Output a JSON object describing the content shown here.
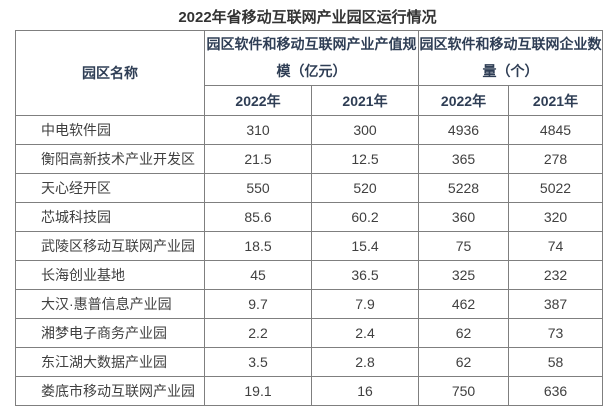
{
  "page": {
    "title": "2022年省移动互联网产业园区运行情况"
  },
  "table": {
    "name_header": "园区名称",
    "groups": [
      "园区软件和移动互联网产业产值规模（亿元）",
      "园区软件和移动互联网企业数量（个）"
    ],
    "year_columns": [
      "2022年",
      "2021年",
      "2022年",
      "2021年"
    ],
    "rows": [
      {
        "name": "中电软件园",
        "values": [
          "310",
          "300",
          "4936",
          "4845"
        ]
      },
      {
        "name": "衡阳高新技术产业开发区",
        "values": [
          "21.5",
          "12.5",
          "365",
          "278"
        ]
      },
      {
        "name": "天心经开区",
        "values": [
          "550",
          "520",
          "5228",
          "5022"
        ]
      },
      {
        "name": "芯城科技园",
        "values": [
          "85.6",
          "60.2",
          "360",
          "320"
        ]
      },
      {
        "name": "武陵区移动互联网产业园",
        "values": [
          "18.5",
          "15.4",
          "75",
          "74"
        ]
      },
      {
        "name": "长海创业基地",
        "values": [
          "45",
          "36.5",
          "325",
          "232"
        ]
      },
      {
        "name": "大汉·惠普信息产业园",
        "values": [
          "9.7",
          "7.9",
          "462",
          "387"
        ]
      },
      {
        "name": "湘梦电子商务产业园",
        "values": [
          "2.2",
          "2.4",
          "62",
          "73"
        ]
      },
      {
        "name": "东江湖大数据产业园",
        "values": [
          "3.5",
          "2.8",
          "62",
          "58"
        ]
      },
      {
        "name": "娄底市移动互联网产业园",
        "values": [
          "19.1",
          "16",
          "750",
          "636"
        ]
      }
    ]
  },
  "colors": {
    "border": "#7f7f7f",
    "header_text": "#2f3e55",
    "body_text": "#404040",
    "title_text": "#333333",
    "background": "#ffffff"
  }
}
